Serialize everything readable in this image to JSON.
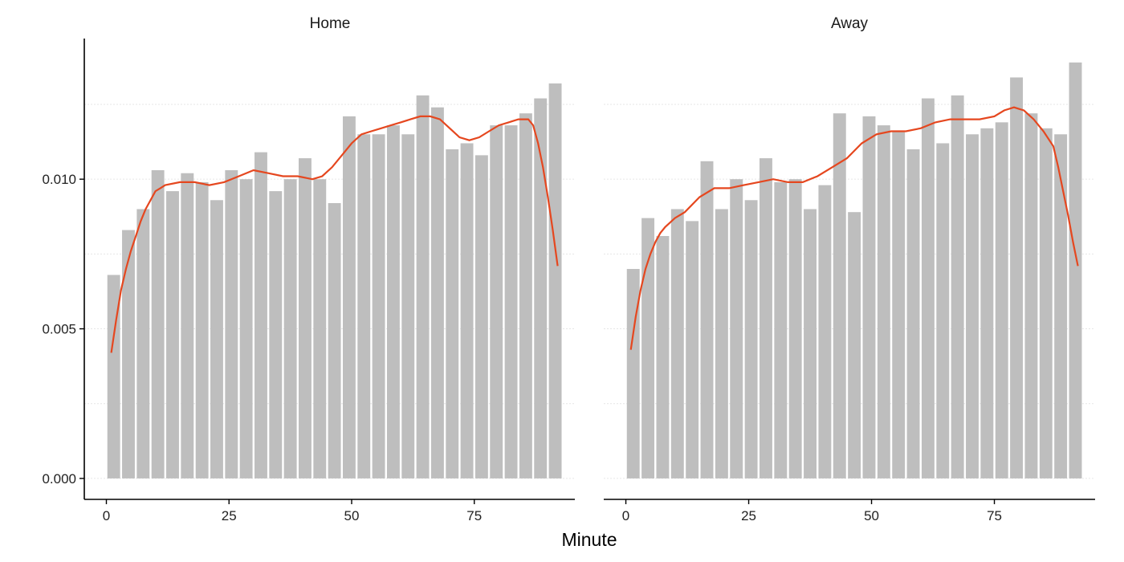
{
  "chart_data": [
    {
      "type": "bar",
      "title": "Home",
      "xlabel": "Minute",
      "ylabel": "",
      "xlim": [
        -4.5,
        95.5
      ],
      "ylim": [
        -0.0007,
        0.0147
      ],
      "x_ticks": [
        0,
        25,
        50,
        75
      ],
      "x_tick_labels": [
        "0",
        "25",
        "50",
        "75"
      ],
      "y_ticks": [
        0.0,
        0.005,
        0.01
      ],
      "y_tick_labels": [
        "0.000",
        "0.005",
        "0.010"
      ],
      "grid": "horizontal dashed, light",
      "bar_color": "#bebebe",
      "bar_width": 2.6,
      "x": [
        1.5,
        4.5,
        7.5,
        10.5,
        13.5,
        16.5,
        19.5,
        22.5,
        25.5,
        28.5,
        31.5,
        34.5,
        37.5,
        40.5,
        43.5,
        46.5,
        49.5,
        52.5,
        55.5,
        58.5,
        61.5,
        64.5,
        67.5,
        70.5,
        73.5,
        76.5,
        79.5,
        82.5,
        85.5,
        88.5,
        91.5
      ],
      "values": [
        0.0068,
        0.0083,
        0.009,
        0.0103,
        0.0096,
        0.0102,
        0.0099,
        0.0093,
        0.0103,
        0.01,
        0.0109,
        0.0096,
        0.01,
        0.0107,
        0.01,
        0.0092,
        0.0121,
        0.0115,
        0.0115,
        0.0118,
        0.0115,
        0.0128,
        0.0124,
        0.011,
        0.0112,
        0.0108,
        0.0118,
        0.0118,
        0.0122,
        0.0127,
        0.0132
      ],
      "smooth_color": "#e5471f",
      "smooth": {
        "x": [
          1,
          2,
          3,
          4,
          5,
          6,
          7,
          8,
          9,
          10,
          11,
          12,
          15,
          18,
          21,
          24,
          27,
          30,
          33,
          36,
          39,
          42,
          44,
          46,
          48,
          50,
          52,
          54,
          56,
          58,
          60,
          62,
          64,
          66,
          68,
          70,
          72,
          74,
          76,
          78,
          80,
          82,
          84,
          86,
          87,
          88,
          89,
          90,
          91,
          92
        ],
        "y": [
          0.0042,
          0.0053,
          0.0063,
          0.007,
          0.0076,
          0.0081,
          0.0086,
          0.009,
          0.0093,
          0.0096,
          0.0097,
          0.0098,
          0.0099,
          0.0099,
          0.0098,
          0.0099,
          0.0101,
          0.0103,
          0.0102,
          0.0101,
          0.0101,
          0.01,
          0.0101,
          0.0104,
          0.0108,
          0.0112,
          0.0115,
          0.0116,
          0.0117,
          0.0118,
          0.0119,
          0.012,
          0.0121,
          0.0121,
          0.012,
          0.0117,
          0.0114,
          0.0113,
          0.0114,
          0.0116,
          0.0118,
          0.0119,
          0.012,
          0.012,
          0.0118,
          0.0112,
          0.0104,
          0.0094,
          0.0083,
          0.0071
        ]
      }
    },
    {
      "type": "bar",
      "title": "Away",
      "xlabel": "Minute",
      "ylabel": "",
      "xlim": [
        -4.5,
        95.5
      ],
      "ylim": [
        -0.0007,
        0.0147
      ],
      "x_ticks": [
        0,
        25,
        50,
        75
      ],
      "x_tick_labels": [
        "0",
        "25",
        "50",
        "75"
      ],
      "y_ticks": [
        0.0,
        0.005,
        0.01
      ],
      "y_tick_labels": [
        "0.000",
        "0.005",
        "0.010"
      ],
      "grid": "horizontal dashed, light",
      "bar_color": "#bebebe",
      "bar_width": 2.6,
      "x": [
        1.5,
        4.5,
        7.5,
        10.5,
        13.5,
        16.5,
        19.5,
        22.5,
        25.5,
        28.5,
        31.5,
        34.5,
        37.5,
        40.5,
        43.5,
        46.5,
        49.5,
        52.5,
        55.5,
        58.5,
        61.5,
        64.5,
        67.5,
        70.5,
        73.5,
        76.5,
        79.5,
        82.5,
        85.5,
        88.5,
        91.5
      ],
      "values": [
        0.007,
        0.0087,
        0.0081,
        0.009,
        0.0086,
        0.0106,
        0.009,
        0.01,
        0.0093,
        0.0107,
        0.0099,
        0.01,
        0.009,
        0.0098,
        0.0122,
        0.0089,
        0.0121,
        0.0118,
        0.0116,
        0.011,
        0.0127,
        0.0112,
        0.0128,
        0.0115,
        0.0117,
        0.0119,
        0.0134,
        0.0122,
        0.0117,
        0.0115,
        0.0139
      ],
      "smooth_color": "#e5471f",
      "smooth": {
        "x": [
          1,
          2,
          3,
          4,
          5,
          6,
          7,
          8,
          10,
          12,
          15,
          18,
          21,
          24,
          27,
          30,
          33,
          36,
          39,
          42,
          45,
          48,
          51,
          54,
          57,
          60,
          63,
          66,
          69,
          72,
          75,
          77,
          79,
          81,
          83,
          85,
          87,
          88,
          89,
          90,
          91,
          92
        ],
        "y": [
          0.0043,
          0.0054,
          0.0063,
          0.007,
          0.0075,
          0.0079,
          0.0082,
          0.0084,
          0.0087,
          0.0089,
          0.0094,
          0.0097,
          0.0097,
          0.0098,
          0.0099,
          0.01,
          0.0099,
          0.0099,
          0.0101,
          0.0104,
          0.0107,
          0.0112,
          0.0115,
          0.0116,
          0.0116,
          0.0117,
          0.0119,
          0.012,
          0.012,
          0.012,
          0.0121,
          0.0123,
          0.0124,
          0.0123,
          0.012,
          0.0116,
          0.0111,
          0.0104,
          0.0096,
          0.0088,
          0.0079,
          0.0071
        ]
      }
    }
  ]
}
